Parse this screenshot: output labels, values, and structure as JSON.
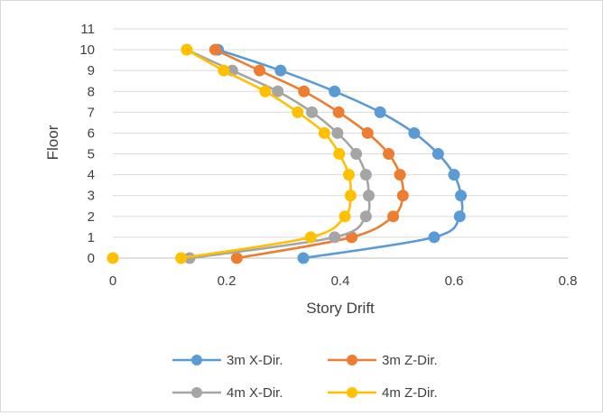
{
  "chart_data": {
    "type": "line",
    "title": "",
    "xlabel": "Story Drift",
    "ylabel": "Floor",
    "xlim": [
      0,
      0.8
    ],
    "ylim": [
      0,
      11
    ],
    "x_ticks": [
      "0",
      "0.2",
      "0.4",
      "0.6",
      "0.8"
    ],
    "y_ticks": [
      "0",
      "1",
      "2",
      "3",
      "4",
      "5",
      "6",
      "7",
      "8",
      "9",
      "10",
      "11"
    ],
    "grid": "horizontal",
    "legend_position": "bottom",
    "floors": [
      0,
      1,
      2,
      3,
      4,
      5,
      6,
      7,
      8,
      9,
      10
    ],
    "series": [
      {
        "name": "3m X-Dir.",
        "color": "#5b9bd5",
        "x": [
          0.335,
          0.565,
          0.61,
          0.612,
          0.6,
          0.572,
          0.53,
          0.47,
          0.39,
          0.295,
          0.185
        ]
      },
      {
        "name": "3m Z-Dir.",
        "color": "#ed7d31",
        "x": [
          0.218,
          0.42,
          0.493,
          0.51,
          0.505,
          0.485,
          0.448,
          0.397,
          0.336,
          0.258,
          0.18
        ]
      },
      {
        "name": "4m X-Dir.",
        "color": "#a5a5a5",
        "x": [
          0.135,
          0.39,
          0.445,
          0.45,
          0.445,
          0.428,
          0.395,
          0.35,
          0.29,
          0.21,
          0.13
        ]
      },
      {
        "name": "4m Z-Dir.",
        "color": "#ffc000",
        "x": [
          0.12,
          0.348,
          0.408,
          0.418,
          0.415,
          0.398,
          0.372,
          0.325,
          0.268,
          0.195,
          0.13
        ]
      },
      {
        "name": "",
        "color": "#ffc000",
        "x": [
          0.0
        ]
      }
    ]
  }
}
